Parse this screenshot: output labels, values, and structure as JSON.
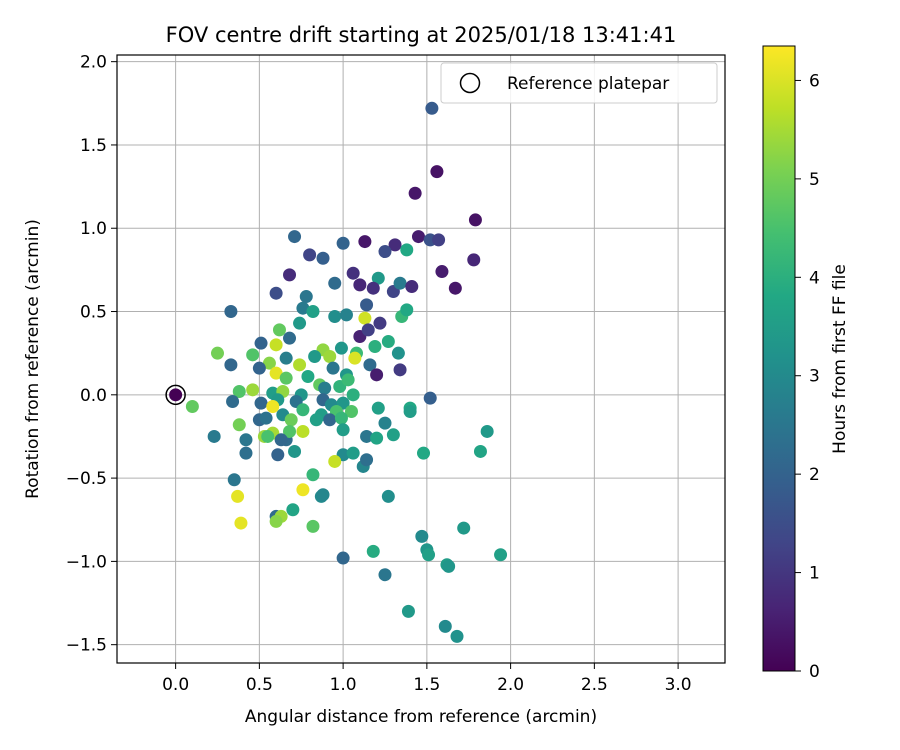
{
  "chart_data": {
    "type": "scatter",
    "title": "FOV centre drift starting at 2025/01/18 13:41:41",
    "xlabel": "Angular distance from reference (arcmin)",
    "ylabel": "Rotation from reference (arcmin)",
    "xlim": [
      -0.35,
      3.28
    ],
    "ylim": [
      -1.61,
      2.04
    ],
    "xticks": [
      "0.0",
      "0.5",
      "1.0",
      "1.5",
      "2.0",
      "2.5",
      "3.0"
    ],
    "xtick_values": [
      0,
      0.5,
      1.0,
      1.5,
      2.0,
      2.5,
      3.0
    ],
    "yticks": [
      "−1.5",
      "−1.0",
      "−0.5",
      "0.0",
      "0.5",
      "1.0",
      "1.5",
      "2.0"
    ],
    "ytick_values": [
      -1.5,
      -1.0,
      -0.5,
      0,
      0.5,
      1.0,
      1.5,
      2.0
    ],
    "grid": true,
    "legend": {
      "label": "Reference platepar",
      "placement": "top-right"
    },
    "reference_point": {
      "x": 0.0,
      "y": 0.0
    },
    "colorbar": {
      "label": "Hours from first FF file",
      "min": 0,
      "max": 6.35,
      "ticks": [
        "0",
        "1",
        "2",
        "3",
        "4",
        "5",
        "6"
      ],
      "tick_values": [
        0,
        1,
        2,
        3,
        4,
        5,
        6
      ],
      "colormap": "viridis"
    },
    "points": [
      [
        0.0,
        0.0,
        0.0
      ],
      [
        1.53,
        1.72,
        1.8
      ],
      [
        1.56,
        1.34,
        0.3
      ],
      [
        1.43,
        1.21,
        0.4
      ],
      [
        1.79,
        1.05,
        0.3
      ],
      [
        0.71,
        0.95,
        2.1
      ],
      [
        1.0,
        0.91,
        2.0
      ],
      [
        1.13,
        0.92,
        0.4
      ],
      [
        1.45,
        0.95,
        0.5
      ],
      [
        1.52,
        0.93,
        1.6
      ],
      [
        1.57,
        0.93,
        1.2
      ],
      [
        1.31,
        0.9,
        0.8
      ],
      [
        1.25,
        0.86,
        1.5
      ],
      [
        1.38,
        0.87,
        3.8
      ],
      [
        0.8,
        0.84,
        1.3
      ],
      [
        0.88,
        0.82,
        1.9
      ],
      [
        0.68,
        0.72,
        0.8
      ],
      [
        1.06,
        0.73,
        0.9
      ],
      [
        1.21,
        0.7,
        3.4
      ],
      [
        1.59,
        0.74,
        0.5
      ],
      [
        1.78,
        0.81,
        0.7
      ],
      [
        0.95,
        0.67,
        2.2
      ],
      [
        1.1,
        0.66,
        0.7
      ],
      [
        1.18,
        0.64,
        0.9
      ],
      [
        1.3,
        0.62,
        1.3
      ],
      [
        1.34,
        0.67,
        2.6
      ],
      [
        1.41,
        0.65,
        0.8
      ],
      [
        1.67,
        0.64,
        0.4
      ],
      [
        0.6,
        0.61,
        1.5
      ],
      [
        0.78,
        0.59,
        2.5
      ],
      [
        0.76,
        0.52,
        2.6
      ],
      [
        0.82,
        0.5,
        3.6
      ],
      [
        0.95,
        0.47,
        3.1
      ],
      [
        1.02,
        0.48,
        2.8
      ],
      [
        1.14,
        0.54,
        1.8
      ],
      [
        1.13,
        0.46,
        5.9
      ],
      [
        1.22,
        0.43,
        1.1
      ],
      [
        1.27,
        0.32,
        3.9
      ],
      [
        1.35,
        0.47,
        4.2
      ],
      [
        1.38,
        0.51,
        3.8
      ],
      [
        0.33,
        0.5,
        2.1
      ],
      [
        0.74,
        0.43,
        3.4
      ],
      [
        0.62,
        0.39,
        4.8
      ],
      [
        0.68,
        0.34,
        2.2
      ],
      [
        0.51,
        0.31,
        2.0
      ],
      [
        0.6,
        0.3,
        5.8
      ],
      [
        0.88,
        0.27,
        5.3
      ],
      [
        0.99,
        0.28,
        3.3
      ],
      [
        1.08,
        0.25,
        4.3
      ],
      [
        1.1,
        0.35,
        0.6
      ],
      [
        1.15,
        0.39,
        1.2
      ],
      [
        1.19,
        0.29,
        4.0
      ],
      [
        1.33,
        0.25,
        3.2
      ],
      [
        0.25,
        0.25,
        5.0
      ],
      [
        0.46,
        0.24,
        4.6
      ],
      [
        0.66,
        0.22,
        2.7
      ],
      [
        0.83,
        0.23,
        3.4
      ],
      [
        0.92,
        0.23,
        5.4
      ],
      [
        1.07,
        0.22,
        6.0
      ],
      [
        0.33,
        0.18,
        2.1
      ],
      [
        0.56,
        0.19,
        5.2
      ],
      [
        0.74,
        0.18,
        5.6
      ],
      [
        0.94,
        0.16,
        2.5
      ],
      [
        1.02,
        0.12,
        3.3
      ],
      [
        1.16,
        0.18,
        2.2
      ],
      [
        1.2,
        0.12,
        0.5
      ],
      [
        1.34,
        0.15,
        1.1
      ],
      [
        0.5,
        0.16,
        2.0
      ],
      [
        0.6,
        0.13,
        6.1
      ],
      [
        0.66,
        0.1,
        4.7
      ],
      [
        0.79,
        0.11,
        3.8
      ],
      [
        0.86,
        0.06,
        4.8
      ],
      [
        0.98,
        0.05,
        4.1
      ],
      [
        1.03,
        0.09,
        4.3
      ],
      [
        0.38,
        0.02,
        4.6
      ],
      [
        0.46,
        0.03,
        5.4
      ],
      [
        0.58,
        0.01,
        3.5
      ],
      [
        0.64,
        0.02,
        5.3
      ],
      [
        0.75,
        0.0,
        3.3
      ],
      [
        0.89,
        0.04,
        2.7
      ],
      [
        1.06,
        0.0,
        4.0
      ],
      [
        0.1,
        -0.07,
        4.8
      ],
      [
        0.34,
        -0.04,
        2.2
      ],
      [
        0.51,
        -0.05,
        2.1
      ],
      [
        0.61,
        -0.03,
        3.4
      ],
      [
        0.72,
        -0.04,
        2.4
      ],
      [
        0.88,
        -0.03,
        2.1
      ],
      [
        0.93,
        -0.06,
        3.0
      ],
      [
        1.0,
        -0.05,
        3.3
      ],
      [
        1.21,
        -0.08,
        3.6
      ],
      [
        1.4,
        -0.08,
        3.8
      ],
      [
        1.52,
        -0.02,
        1.9
      ],
      [
        0.58,
        -0.07,
        6.2
      ],
      [
        0.64,
        -0.12,
        3.0
      ],
      [
        0.76,
        -0.09,
        4.2
      ],
      [
        0.87,
        -0.12,
        3.5
      ],
      [
        0.96,
        -0.1,
        4.5
      ],
      [
        1.05,
        -0.1,
        4.6
      ],
      [
        0.5,
        -0.15,
        2.1
      ],
      [
        0.54,
        -0.14,
        2.4
      ],
      [
        0.69,
        -0.15,
        4.9
      ],
      [
        0.84,
        -0.15,
        3.6
      ],
      [
        0.92,
        -0.15,
        2.1
      ],
      [
        0.99,
        -0.14,
        4.2
      ],
      [
        1.25,
        -0.17,
        2.8
      ],
      [
        1.4,
        -0.1,
        3.5
      ],
      [
        0.38,
        -0.18,
        5.0
      ],
      [
        0.53,
        -0.25,
        5.4
      ],
      [
        0.58,
        -0.23,
        5.5
      ],
      [
        0.66,
        -0.27,
        2.2
      ],
      [
        0.68,
        -0.22,
        4.6
      ],
      [
        0.76,
        -0.22,
        5.7
      ],
      [
        1.0,
        -0.21,
        3.5
      ],
      [
        1.14,
        -0.25,
        2.5
      ],
      [
        1.2,
        -0.26,
        3.7
      ],
      [
        1.3,
        -0.24,
        3.6
      ],
      [
        0.23,
        -0.25,
        2.6
      ],
      [
        0.42,
        -0.27,
        2.5
      ],
      [
        0.55,
        -0.25,
        4.5
      ],
      [
        0.63,
        -0.27,
        2.1
      ],
      [
        0.71,
        -0.34,
        3.3
      ],
      [
        0.42,
        -0.35,
        2.3
      ],
      [
        0.61,
        -0.36,
        2.0
      ],
      [
        1.0,
        -0.36,
        3.0
      ],
      [
        1.06,
        -0.35,
        3.5
      ],
      [
        1.12,
        -0.43,
        2.9
      ],
      [
        1.14,
        -0.39,
        2.3
      ],
      [
        1.48,
        -0.35,
        3.8
      ],
      [
        1.82,
        -0.34,
        3.7
      ],
      [
        1.86,
        -0.22,
        3.4
      ],
      [
        0.35,
        -0.51,
        2.5
      ],
      [
        0.82,
        -0.48,
        4.2
      ],
      [
        0.95,
        -0.4,
        5.8
      ],
      [
        0.37,
        -0.61,
        6.1
      ],
      [
        0.76,
        -0.57,
        6.2
      ],
      [
        0.87,
        -0.61,
        3.0
      ],
      [
        0.88,
        -0.6,
        2.9
      ],
      [
        1.27,
        -0.61,
        3.1
      ],
      [
        0.6,
        -0.73,
        2.2
      ],
      [
        0.7,
        -0.69,
        3.7
      ],
      [
        0.63,
        -0.73,
        5.4
      ],
      [
        0.39,
        -0.77,
        6.1
      ],
      [
        0.6,
        -0.76,
        5.2
      ],
      [
        0.82,
        -0.79,
        4.7
      ],
      [
        1.47,
        -0.85,
        3.0
      ],
      [
        1.5,
        -0.93,
        3.3
      ],
      [
        1.51,
        -0.96,
        3.6
      ],
      [
        1.72,
        -0.8,
        3.4
      ],
      [
        1.18,
        -0.94,
        3.9
      ],
      [
        1.0,
        -0.98,
        2.1
      ],
      [
        1.62,
        -1.02,
        3.5
      ],
      [
        1.63,
        -1.03,
        3.3
      ],
      [
        1.94,
        -0.96,
        3.6
      ],
      [
        1.25,
        -1.08,
        2.5
      ],
      [
        1.39,
        -1.3,
        3.4
      ],
      [
        1.61,
        -1.39,
        3.0
      ],
      [
        1.68,
        -1.45,
        3.2
      ]
    ]
  }
}
